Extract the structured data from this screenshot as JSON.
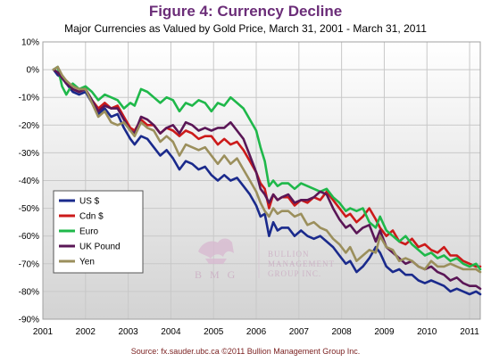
{
  "title": "Figure 4: Currency Decline",
  "subtitle": "Major Currencies as Valued by Gold Price, March 31, 2001 - March 31, 2011",
  "source": "Source: fx.sauder.ubc.ca ©2011 Bullion Management Group Inc.",
  "watermark": {
    "initials": "B M G",
    "line1": "BULLION",
    "line2": "MANAGEMENT",
    "line3": "GROUP INC."
  },
  "colors": {
    "title": "#6b2d78",
    "source": "#7a1f1f",
    "plot_bg_top": "#ffffff",
    "plot_bg_bottom": "#d3d3d3",
    "grid": "#c8c8c8"
  },
  "chart_data": {
    "type": "line",
    "title": "Figure 4: Currency Decline",
    "subtitle": "Major Currencies as Valued by Gold Price, March 31, 2001 - March 31, 2011",
    "xlabel": "",
    "ylabel": "",
    "xlim": [
      2001,
      2011.25
    ],
    "ylim": [
      -90,
      10
    ],
    "x_ticks": [
      2001,
      2002,
      2003,
      2004,
      2005,
      2006,
      2007,
      2008,
      2009,
      2010,
      2011
    ],
    "x_tick_labels": [
      "2001",
      "2002",
      "2003",
      "2004",
      "2005",
      "2006",
      "2007",
      "2008",
      "2009",
      "2010",
      "2011"
    ],
    "y_ticks": [
      10,
      0,
      -10,
      -20,
      -30,
      -40,
      -50,
      -60,
      -70,
      -80,
      -90
    ],
    "y_tick_labels": [
      "10%",
      "0%",
      "-10%",
      "-20%",
      "-30%",
      "-40%",
      "-50%",
      "-60%",
      "-70%",
      "-80%",
      "-90%"
    ],
    "grid": true,
    "legend_position": "lower-left",
    "series": [
      {
        "name": "US $",
        "color": "#1a2a8c",
        "x": [
          2001.25,
          2001.35,
          2001.45,
          2001.55,
          2001.7,
          2001.85,
          2002.0,
          2002.15,
          2002.3,
          2002.45,
          2002.6,
          2002.75,
          2002.9,
          2003.05,
          2003.15,
          2003.3,
          2003.45,
          2003.6,
          2003.75,
          2003.9,
          2004.05,
          2004.2,
          2004.35,
          2004.5,
          2004.65,
          2004.8,
          2004.95,
          2005.1,
          2005.25,
          2005.4,
          2005.55,
          2005.7,
          2005.85,
          2006.0,
          2006.1,
          2006.2,
          2006.3,
          2006.4,
          2006.5,
          2006.6,
          2006.75,
          2006.9,
          2007.05,
          2007.2,
          2007.35,
          2007.5,
          2007.65,
          2007.8,
          2007.95,
          2008.1,
          2008.2,
          2008.35,
          2008.5,
          2008.65,
          2008.8,
          2008.9,
          2009.05,
          2009.2,
          2009.35,
          2009.5,
          2009.65,
          2009.8,
          2009.95,
          2010.1,
          2010.25,
          2010.4,
          2010.55,
          2010.7,
          2010.85,
          2011.0,
          2011.15,
          2011.25
        ],
        "values": [
          0,
          -2,
          -3,
          -5,
          -8,
          -9,
          -8,
          -12,
          -16,
          -14,
          -17,
          -16,
          -21,
          -25,
          -27,
          -24,
          -25,
          -28,
          -31,
          -29,
          -32,
          -36,
          -33,
          -34,
          -36,
          -35,
          -38,
          -40,
          -38,
          -40,
          -39,
          -42,
          -45,
          -49,
          -53,
          -52,
          -60,
          -55,
          -58,
          -57,
          -57,
          -60,
          -58,
          -60,
          -61,
          -60,
          -62,
          -64,
          -67,
          -70,
          -69,
          -73,
          -71,
          -68,
          -64,
          -66,
          -71,
          -73,
          -72,
          -74,
          -74,
          -76,
          -77,
          -76,
          -77,
          -78,
          -80,
          -79,
          -80,
          -81,
          -80,
          -81
        ]
      },
      {
        "name": "Cdn $",
        "color": "#cc1a1a",
        "x": [
          2001.25,
          2001.35,
          2001.45,
          2001.55,
          2001.7,
          2001.85,
          2002.0,
          2002.15,
          2002.3,
          2002.45,
          2002.6,
          2002.75,
          2002.9,
          2003.05,
          2003.15,
          2003.3,
          2003.45,
          2003.6,
          2003.75,
          2003.9,
          2004.05,
          2004.2,
          2004.35,
          2004.5,
          2004.65,
          2004.8,
          2004.95,
          2005.1,
          2005.25,
          2005.4,
          2005.55,
          2005.7,
          2005.85,
          2006.0,
          2006.1,
          2006.2,
          2006.3,
          2006.4,
          2006.5,
          2006.6,
          2006.75,
          2006.9,
          2007.05,
          2007.2,
          2007.35,
          2007.5,
          2007.65,
          2007.8,
          2007.95,
          2008.1,
          2008.2,
          2008.35,
          2008.5,
          2008.65,
          2008.8,
          2008.9,
          2009.05,
          2009.2,
          2009.35,
          2009.5,
          2009.65,
          2009.8,
          2009.95,
          2010.1,
          2010.25,
          2010.4,
          2010.55,
          2010.7,
          2010.85,
          2011.0,
          2011.15,
          2011.25
        ],
        "values": [
          0,
          -1,
          -3,
          -4,
          -7,
          -8,
          -7,
          -11,
          -14,
          -12,
          -14,
          -13,
          -17,
          -21,
          -22,
          -18,
          -20,
          -20,
          -23,
          -21,
          -22,
          -24,
          -22,
          -23,
          -25,
          -24,
          -24,
          -27,
          -25,
          -27,
          -26,
          -29,
          -33,
          -37,
          -41,
          -43,
          -50,
          -45,
          -47,
          -46,
          -46,
          -49,
          -47,
          -48,
          -46,
          -47,
          -44,
          -47,
          -50,
          -53,
          -52,
          -55,
          -53,
          -50,
          -54,
          -57,
          -60,
          -58,
          -62,
          -63,
          -61,
          -64,
          -63,
          -65,
          -66,
          -64,
          -67,
          -67,
          -69,
          -70,
          -71,
          -71
        ]
      },
      {
        "name": "Euro",
        "color": "#1fb84a",
        "x": [
          2001.25,
          2001.35,
          2001.45,
          2001.55,
          2001.7,
          2001.85,
          2002.0,
          2002.15,
          2002.3,
          2002.45,
          2002.6,
          2002.75,
          2002.9,
          2003.05,
          2003.15,
          2003.3,
          2003.45,
          2003.6,
          2003.75,
          2003.9,
          2004.05,
          2004.2,
          2004.35,
          2004.5,
          2004.65,
          2004.8,
          2004.95,
          2005.1,
          2005.25,
          2005.4,
          2005.55,
          2005.7,
          2005.85,
          2006.0,
          2006.1,
          2006.2,
          2006.3,
          2006.4,
          2006.5,
          2006.6,
          2006.75,
          2006.9,
          2007.05,
          2007.2,
          2007.35,
          2007.5,
          2007.65,
          2007.8,
          2007.95,
          2008.1,
          2008.2,
          2008.35,
          2008.5,
          2008.65,
          2008.8,
          2008.9,
          2009.05,
          2009.2,
          2009.35,
          2009.5,
          2009.65,
          2009.8,
          2009.95,
          2010.1,
          2010.25,
          2010.4,
          2010.55,
          2010.7,
          2010.85,
          2011.0,
          2011.15,
          2011.25
        ],
        "values": [
          0,
          1,
          -6,
          -9,
          -5,
          -7,
          -6,
          -8,
          -11,
          -9,
          -10,
          -11,
          -14,
          -12,
          -13,
          -7,
          -8,
          -10,
          -12,
          -10,
          -11,
          -15,
          -12,
          -13,
          -11,
          -12,
          -15,
          -12,
          -13,
          -10,
          -12,
          -14,
          -18,
          -22,
          -28,
          -33,
          -42,
          -40,
          -42,
          -41,
          -41,
          -43,
          -41,
          -42,
          -43,
          -44,
          -43,
          -46,
          -48,
          -51,
          -50,
          -51,
          -50,
          -55,
          -57,
          -53,
          -58,
          -60,
          -62,
          -60,
          -63,
          -65,
          -67,
          -66,
          -68,
          -67,
          -69,
          -68,
          -70,
          -71,
          -70,
          -72
        ]
      },
      {
        "name": "UK Pound",
        "color": "#5a1656",
        "x": [
          2001.25,
          2001.35,
          2001.45,
          2001.55,
          2001.7,
          2001.85,
          2002.0,
          2002.15,
          2002.3,
          2002.45,
          2002.6,
          2002.75,
          2002.9,
          2003.05,
          2003.15,
          2003.3,
          2003.45,
          2003.6,
          2003.75,
          2003.9,
          2004.05,
          2004.2,
          2004.35,
          2004.5,
          2004.65,
          2004.8,
          2004.95,
          2005.1,
          2005.25,
          2005.4,
          2005.55,
          2005.7,
          2005.85,
          2006.0,
          2006.1,
          2006.2,
          2006.3,
          2006.4,
          2006.5,
          2006.6,
          2006.75,
          2006.9,
          2007.05,
          2007.2,
          2007.35,
          2007.5,
          2007.65,
          2007.8,
          2007.95,
          2008.1,
          2008.2,
          2008.35,
          2008.5,
          2008.65,
          2008.8,
          2008.9,
          2009.05,
          2009.2,
          2009.35,
          2009.5,
          2009.65,
          2009.8,
          2009.95,
          2010.1,
          2010.25,
          2010.4,
          2010.55,
          2010.7,
          2010.85,
          2011.0,
          2011.15,
          2011.25
        ],
        "values": [
          0,
          -1,
          -3,
          -5,
          -7,
          -8,
          -7,
          -11,
          -15,
          -13,
          -14,
          -14,
          -18,
          -22,
          -23,
          -17,
          -18,
          -20,
          -23,
          -21,
          -20,
          -23,
          -19,
          -20,
          -22,
          -21,
          -22,
          -21,
          -21,
          -19,
          -22,
          -25,
          -31,
          -37,
          -43,
          -45,
          -48,
          -45,
          -47,
          -46,
          -45,
          -48,
          -47,
          -47,
          -46,
          -44,
          -45,
          -50,
          -54,
          -57,
          -56,
          -59,
          -57,
          -56,
          -62,
          -58,
          -64,
          -66,
          -68,
          -70,
          -69,
          -71,
          -72,
          -71,
          -73,
          -74,
          -76,
          -75,
          -77,
          -78,
          -78,
          -79
        ]
      },
      {
        "name": "Yen",
        "color": "#9b8f5c",
        "x": [
          2001.25,
          2001.35,
          2001.45,
          2001.55,
          2001.7,
          2001.85,
          2002.0,
          2002.15,
          2002.3,
          2002.45,
          2002.6,
          2002.75,
          2002.9,
          2003.05,
          2003.15,
          2003.3,
          2003.45,
          2003.6,
          2003.75,
          2003.9,
          2004.05,
          2004.2,
          2004.35,
          2004.5,
          2004.65,
          2004.8,
          2004.95,
          2005.1,
          2005.25,
          2005.4,
          2005.55,
          2005.7,
          2005.85,
          2006.0,
          2006.1,
          2006.2,
          2006.3,
          2006.4,
          2006.5,
          2006.6,
          2006.75,
          2006.9,
          2007.05,
          2007.2,
          2007.35,
          2007.5,
          2007.65,
          2007.8,
          2007.95,
          2008.1,
          2008.2,
          2008.35,
          2008.5,
          2008.65,
          2008.8,
          2008.9,
          2009.05,
          2009.2,
          2009.35,
          2009.5,
          2009.65,
          2009.8,
          2009.95,
          2010.1,
          2010.25,
          2010.4,
          2010.55,
          2010.7,
          2010.85,
          2011.0,
          2011.15,
          2011.25
        ],
        "values": [
          0,
          1,
          -2,
          -4,
          -6,
          -7,
          -7,
          -12,
          -17,
          -15,
          -19,
          -20,
          -19,
          -22,
          -24,
          -19,
          -21,
          -22,
          -26,
          -24,
          -26,
          -31,
          -27,
          -28,
          -29,
          -28,
          -31,
          -34,
          -31,
          -34,
          -32,
          -36,
          -40,
          -44,
          -48,
          -51,
          -53,
          -50,
          -52,
          -51,
          -51,
          -53,
          -52,
          -56,
          -55,
          -57,
          -58,
          -61,
          -63,
          -66,
          -64,
          -69,
          -67,
          -65,
          -66,
          -60,
          -64,
          -65,
          -69,
          -68,
          -69,
          -71,
          -72,
          -69,
          -71,
          -71,
          -70,
          -71,
          -72,
          -72,
          -72,
          -73
        ]
      }
    ]
  }
}
